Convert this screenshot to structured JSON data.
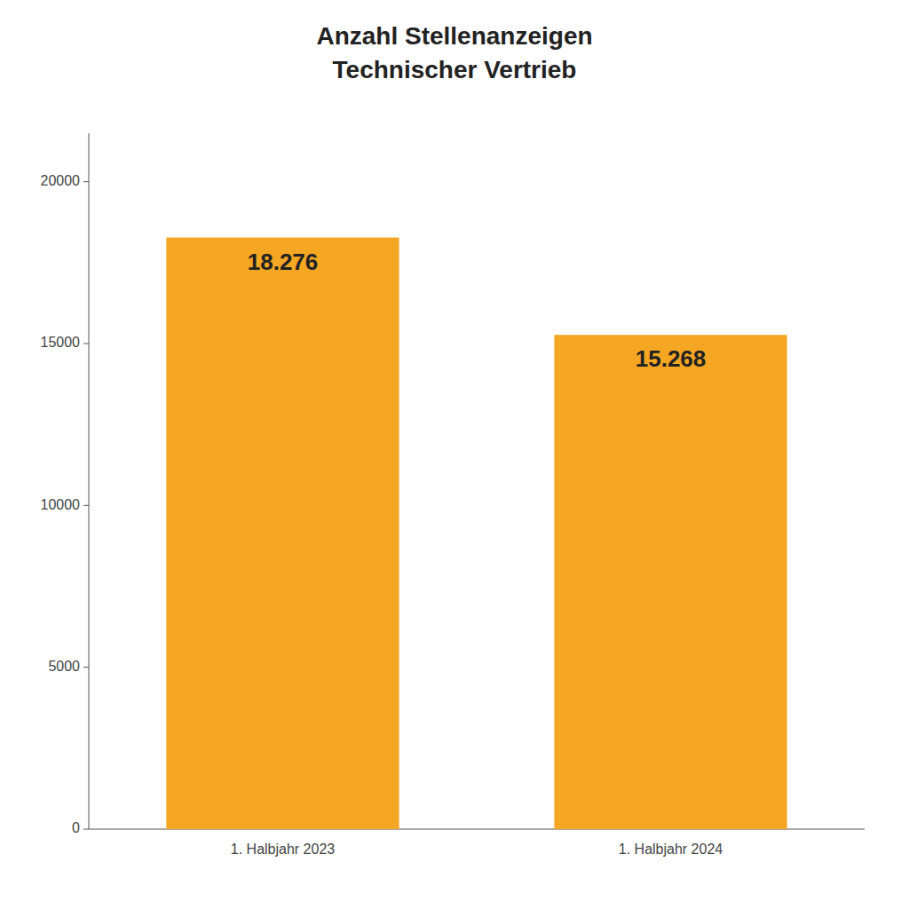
{
  "chart_data": {
    "type": "bar",
    "title": "Anzahl Stellenanzeigen\nTechnischer Vertrieb",
    "categories": [
      "1. Halbjahr 2023",
      "1. Halbjahr 2024"
    ],
    "values": [
      18276,
      15268
    ],
    "value_labels": [
      "18.276",
      "15.268"
    ],
    "data_labels": true,
    "color": "#F5A623",
    "ylim": [
      0,
      21500
    ],
    "yticks": [
      0,
      5000,
      10000,
      15000,
      20000
    ],
    "grid": false
  }
}
